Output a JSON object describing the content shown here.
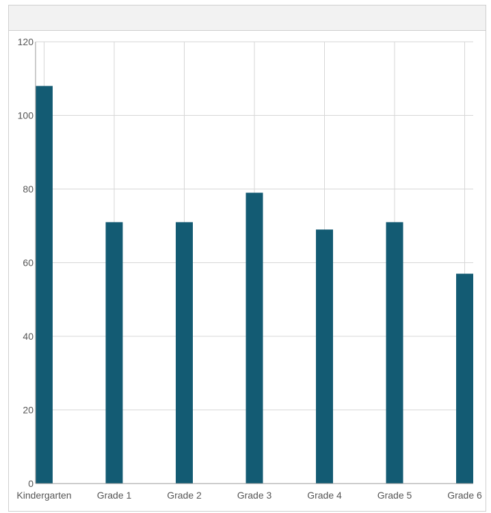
{
  "panel": {
    "title": ""
  },
  "chart_data": {
    "type": "bar",
    "title": "",
    "xlabel": "",
    "ylabel": "",
    "categories": [
      "Kindergarten",
      "Grade 1",
      "Grade 2",
      "Grade 3",
      "Grade 4",
      "Grade 5",
      "Grade 6"
    ],
    "values": [
      108,
      71,
      71,
      79,
      69,
      71,
      57
    ],
    "ylim": [
      0,
      120
    ],
    "yticks": [
      0,
      20,
      40,
      60,
      80,
      100,
      120
    ],
    "grid": true,
    "legend": "none",
    "colors": {
      "bar": "#135b73",
      "grid": "#d6d6d6",
      "axis": "#999999"
    }
  }
}
